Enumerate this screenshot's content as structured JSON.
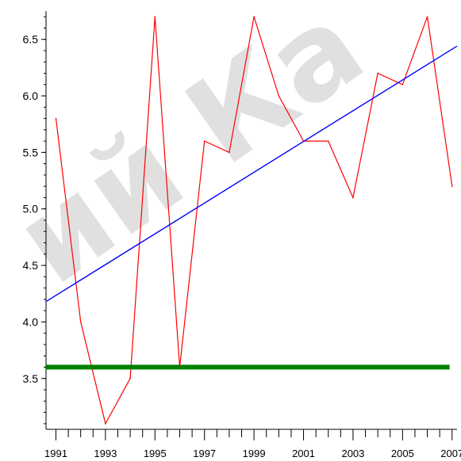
{
  "chart_data": {
    "type": "line",
    "title": "",
    "xlabel": "",
    "ylabel": "",
    "xlim": [
      1990.6,
      2007.2
    ],
    "ylim": [
      3.05,
      6.75
    ],
    "grid": false,
    "legend": "none",
    "x_tick_labels": [
      "1991",
      "1993",
      "1995",
      "1997",
      "1999",
      "2001",
      "2003",
      "2005",
      "2007"
    ],
    "y_tick_labels": [
      "3.5",
      "4.0",
      "4.5",
      "5.0",
      "5.5",
      "6.0",
      "6.5"
    ],
    "series": [
      {
        "color": "#ff0000",
        "x": [
          1991,
          1992,
          1993,
          1994,
          1995,
          1996,
          1997,
          1998,
          1999,
          2000,
          2001,
          2002,
          2003,
          2004,
          2005,
          2006,
          2007
        ],
        "y": [
          5.8,
          4.0,
          3.1,
          3.5,
          6.7,
          3.6,
          5.6,
          5.5,
          6.7,
          6.0,
          5.6,
          5.6,
          5.1,
          6.2,
          6.1,
          6.7,
          5.2
        ]
      },
      {
        "color": "#0000ff",
        "x": [
          1990.6,
          2007.2
        ],
        "y": [
          4.18,
          6.44
        ]
      },
      {
        "color": "#008000",
        "x": [
          1990.6,
          2006.9
        ],
        "y": [
          3.6,
          3.6
        ]
      }
    ]
  },
  "watermark": "ий Ка"
}
